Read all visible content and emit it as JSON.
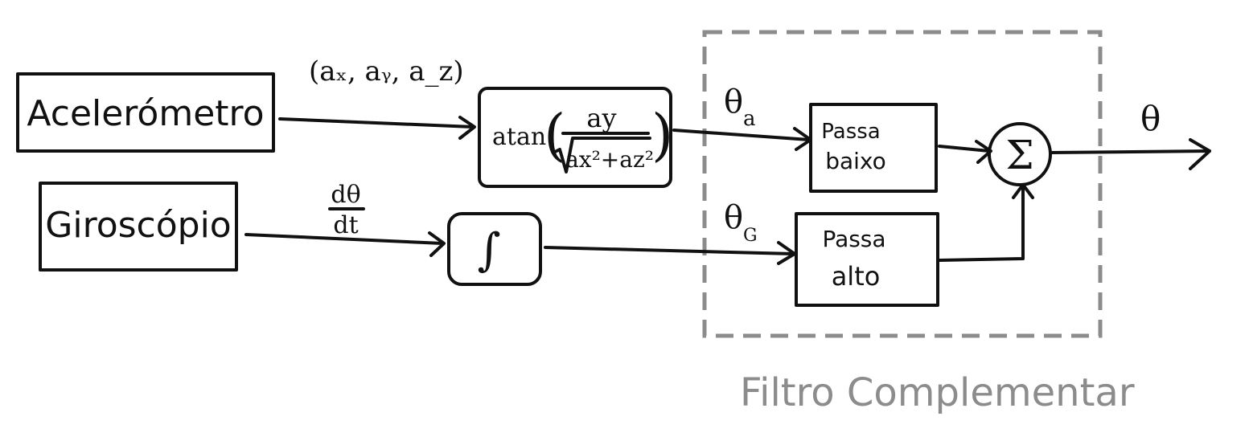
{
  "blocks": {
    "accelerometer": "Acelerómetro",
    "gyroscope": "Giroscópio",
    "atan": {
      "func": "atan",
      "numerator": "ay",
      "denominator": "ax²+az²"
    },
    "integrator": "∫",
    "low_pass": {
      "line1": "Passa",
      "line2": "baixo"
    },
    "high_pass": {
      "line1": "Passa",
      "line2": "alto"
    },
    "sum": "Σ"
  },
  "signals": {
    "accel_vector": "(aₓ, aᵧ, a_z)",
    "gyro_rate_num": "dθ",
    "gyro_rate_den": "dt",
    "theta_a": "θ",
    "theta_a_sub": "a",
    "theta_g": "θ",
    "theta_g_sub": "G",
    "theta_out": "θ"
  },
  "group": {
    "caption": "Filtro Complementar",
    "border_color": "#8c8c8c"
  },
  "colors": {
    "ink": "#111111",
    "group": "#8c8c8c"
  }
}
